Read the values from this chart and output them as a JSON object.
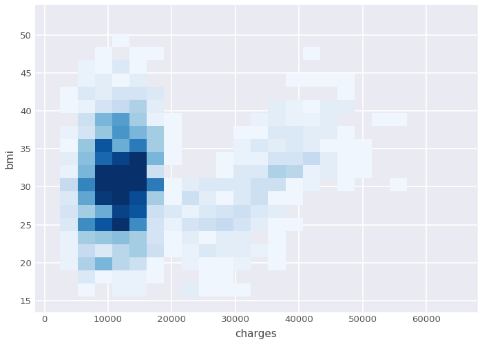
{
  "title": "",
  "xlabel": "charges",
  "ylabel": "bmi",
  "xlim": [
    -1500,
    68000
  ],
  "ylim": [
    13.5,
    54
  ],
  "xticks": [
    0,
    10000,
    20000,
    30000,
    40000,
    50000,
    60000
  ],
  "yticks": [
    15,
    20,
    25,
    30,
    35,
    40,
    45,
    50
  ],
  "background_color": "#eaeaf2",
  "grid_color": "white",
  "cmap": "Blues",
  "bins": 20,
  "figsize": [
    7.0,
    5.0
  ],
  "dpi": 100
}
